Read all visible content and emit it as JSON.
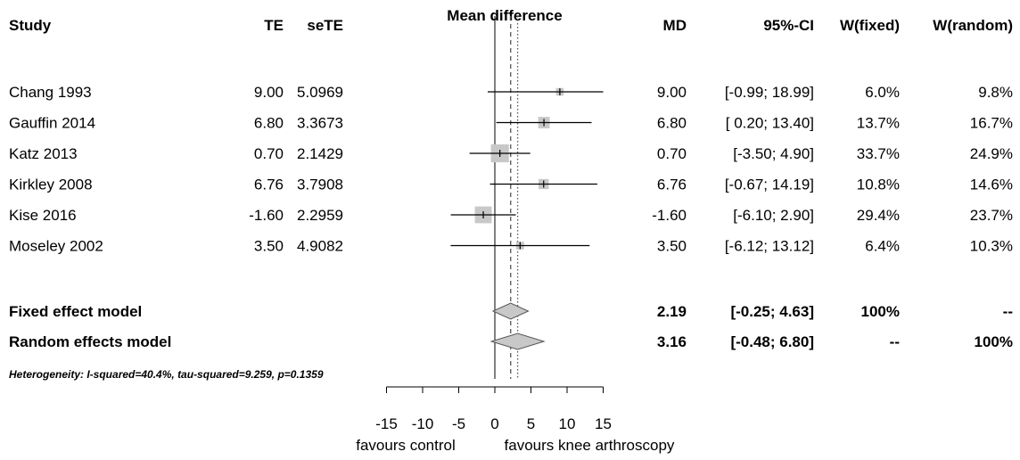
{
  "chart_data": {
    "type": "forest",
    "columns": {
      "study": "Study",
      "te": "TE",
      "sete": "seTE",
      "plot": "Mean difference",
      "md": "MD",
      "ci": "95%-CI",
      "w_fixed": "W(fixed)",
      "w_random": "W(random)"
    },
    "studies": [
      {
        "study": "Chang 1993",
        "te": "9.00",
        "sete": "5.0969",
        "md": "9.00",
        "ci": "[-0.99; 18.99]",
        "w_fixed": "6.0%",
        "w_random": "9.8%",
        "est": 9.0,
        "lo": -0.99,
        "hi": 18.99,
        "weight": 6.0
      },
      {
        "study": "Gauffin 2014",
        "te": "6.80",
        "sete": "3.3673",
        "md": "6.80",
        "ci": "[ 0.20; 13.40]",
        "w_fixed": "13.7%",
        "w_random": "16.7%",
        "est": 6.8,
        "lo": 0.2,
        "hi": 13.4,
        "weight": 13.7
      },
      {
        "study": "Katz 2013",
        "te": "0.70",
        "sete": "2.1429",
        "md": "0.70",
        "ci": "[-3.50;  4.90]",
        "w_fixed": "33.7%",
        "w_random": "24.9%",
        "est": 0.7,
        "lo": -3.5,
        "hi": 4.9,
        "weight": 33.7
      },
      {
        "study": "Kirkley 2008",
        "te": "6.76",
        "sete": "3.7908",
        "md": "6.76",
        "ci": "[-0.67; 14.19]",
        "w_fixed": "10.8%",
        "w_random": "14.6%",
        "est": 6.76,
        "lo": -0.67,
        "hi": 14.19,
        "weight": 10.8
      },
      {
        "study": "Kise 2016",
        "te": "-1.60",
        "sete": "2.2959",
        "md": "-1.60",
        "ci": "[-6.10;  2.90]",
        "w_fixed": "29.4%",
        "w_random": "23.7%",
        "est": -1.6,
        "lo": -6.1,
        "hi": 2.9,
        "weight": 29.4
      },
      {
        "study": "Moseley 2002",
        "te": "3.50",
        "sete": "4.9082",
        "md": "3.50",
        "ci": "[-6.12; 13.12]",
        "w_fixed": "6.4%",
        "w_random": "10.3%",
        "est": 3.5,
        "lo": -6.12,
        "hi": 13.12,
        "weight": 6.4
      }
    ],
    "pooled": [
      {
        "label": "Fixed effect model",
        "md": "2.19",
        "ci": "[-0.25;  4.63]",
        "w_fixed": "100%",
        "w_random": "--",
        "est": 2.19,
        "lo": -0.25,
        "hi": 4.63,
        "line": "dashed"
      },
      {
        "label": "Random effects model",
        "md": "3.16",
        "ci": "[-0.48;  6.80]",
        "w_fixed": "--",
        "w_random": "100%",
        "est": 3.16,
        "lo": -0.48,
        "hi": 6.8,
        "line": "dotted"
      }
    ],
    "heterogeneity": "Heterogeneity: I-squared=40.4%, tau-squared=9.259, p=0.1359",
    "x_ticks": [
      -15,
      -10,
      -5,
      0,
      5,
      10,
      15
    ],
    "xlim": [
      -15,
      15
    ],
    "x_labels": {
      "left": "favours control",
      "right": "favours knee arthroscopy"
    },
    "colors": {
      "box": "#c8c8c8",
      "ci": "#000000",
      "diamond": "#c8c8c8"
    }
  }
}
